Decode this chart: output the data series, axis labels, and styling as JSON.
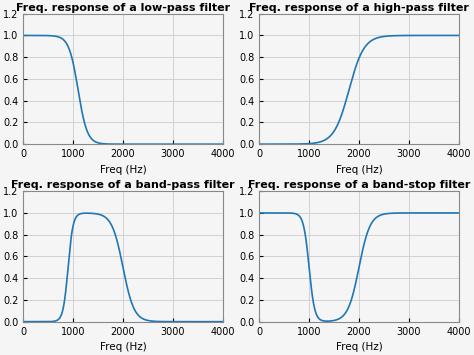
{
  "title_lp": "Freq. response of a low-pass filter",
  "title_hp": "Freq. response of a high-pass filter",
  "title_bp": "Freq. response of a band-pass filter",
  "title_bs": "Freq. response of a band-stop filter",
  "xlabel": "Freq (Hz)",
  "xlim": [
    0,
    4000
  ],
  "ylim": [
    0,
    1.2
  ],
  "yticks": [
    0,
    0.2,
    0.4,
    0.6,
    0.8,
    1.0,
    1.2
  ],
  "xticks": [
    0,
    1000,
    2000,
    3000,
    4000
  ],
  "line_color": "#1f77b4",
  "line_width": 1.2,
  "lp_cutoff": 1100,
  "lp_steepness": 12,
  "hp_cutoff": 1800,
  "hp_steepness": 12,
  "bp_low": 900,
  "bp_high": 2000,
  "bp_steepness": 18,
  "bs_low": 1000,
  "bs_high": 2000,
  "bs_steepness": 18,
  "bg_color": "#f5f5f5",
  "grid_color": "#cccccc",
  "title_fontsize": 8.0,
  "label_fontsize": 7.5,
  "tick_fontsize": 7.0
}
